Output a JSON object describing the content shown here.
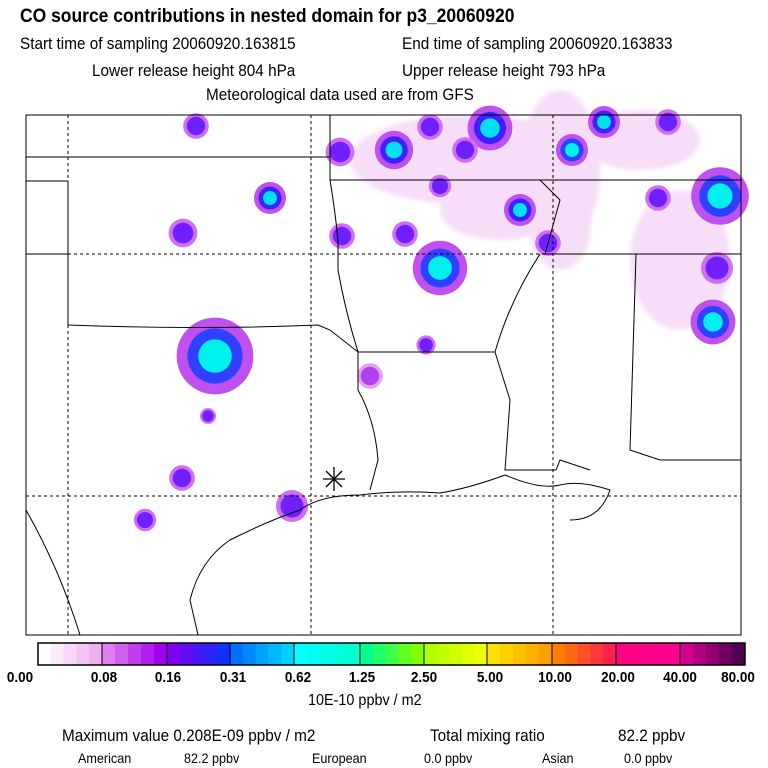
{
  "header": {
    "title": "CO  source contributions in nested domain for p3_20060920",
    "start_time": "Start time of sampling 20060920.163815",
    "end_time": "End time of sampling 20060920.163833",
    "lower_release": "Lower release height  804 hPa",
    "upper_release": "Upper release height  793 hPa",
    "met_data": "Meteorological data used are from GFS"
  },
  "chart_data": {
    "type": "heatmap",
    "title": "CO  source contributions in nested domain for p3_20060920",
    "colorbar": {
      "tick_labels": [
        "0.00",
        "0.08",
        "0.16",
        "0.31",
        "0.62",
        "1.25",
        "2.50",
        "5.00",
        "10.00",
        "20.00",
        "40.00",
        "80.00"
      ],
      "unit_label": "10E-10 ppbv / m2",
      "block_colors": [
        [
          "#ffffff",
          "#f0b0f0"
        ],
        [
          "#e080f0",
          "#a000f0"
        ],
        [
          "#8000f0",
          "#1030ff"
        ],
        [
          "#0070ff",
          "#00d0ff"
        ],
        [
          "#00ffff",
          "#00ffd0"
        ],
        [
          "#00ff90",
          "#80ff00"
        ],
        [
          "#b0ff00",
          "#f0ff00"
        ],
        [
          "#ffe000",
          "#ffa000"
        ],
        [
          "#ff8000",
          "#ff2050"
        ],
        [
          "#ff0080",
          "#ff0090"
        ],
        [
          "#d00090",
          "#500050"
        ]
      ]
    },
    "release_marker": "asterisk",
    "grid": true
  },
  "footer": {
    "max_value": "Maximum value  0.208E-09 ppbv / m2",
    "total_label": "Total mixing ratio",
    "total_value": "82.2 ppbv",
    "american_label": "American",
    "american_value": "82.2 ppbv",
    "european_label": "European",
    "european_value": "0.0 ppbv",
    "asian_label": "Asian",
    "asian_value": "0.0 ppbv"
  }
}
